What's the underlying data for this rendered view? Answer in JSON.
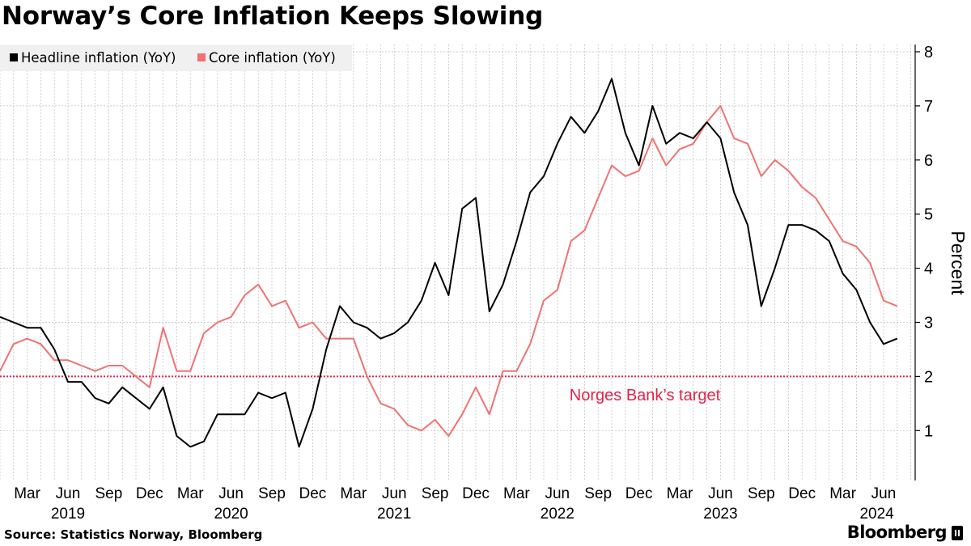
{
  "title": "Norway’s Core Inflation Keeps Slowing",
  "source": "Source: Statistics Norway, Bloomberg",
  "brand": "Bloomberg",
  "colors": {
    "headline": "#000000",
    "core": "#f07272",
    "target": "#e3224a",
    "grid": "#bdbdbd"
  },
  "chart_data": {
    "type": "line",
    "title": "Norway’s Core Inflation Keeps Slowing",
    "ylabel": "Percent",
    "ylim": [
      0,
      8
    ],
    "yticks": [
      1,
      2,
      3,
      4,
      5,
      6,
      7,
      8
    ],
    "x_start": "2019-01",
    "x_end": "2024-07",
    "x_ticks": [
      {
        "index": 2,
        "label": "Mar"
      },
      {
        "index": 5,
        "label": "Jun"
      },
      {
        "index": 8,
        "label": "Sep"
      },
      {
        "index": 11,
        "label": "Dec"
      },
      {
        "index": 14,
        "label": "Mar"
      },
      {
        "index": 17,
        "label": "Jun"
      },
      {
        "index": 20,
        "label": "Sep"
      },
      {
        "index": 23,
        "label": "Dec"
      },
      {
        "index": 26,
        "label": "Mar"
      },
      {
        "index": 29,
        "label": "Jun"
      },
      {
        "index": 32,
        "label": "Sep"
      },
      {
        "index": 35,
        "label": "Dec"
      },
      {
        "index": 38,
        "label": "Mar"
      },
      {
        "index": 41,
        "label": "Jun"
      },
      {
        "index": 44,
        "label": "Sep"
      },
      {
        "index": 47,
        "label": "Dec"
      },
      {
        "index": 50,
        "label": "Mar"
      },
      {
        "index": 53,
        "label": "Jun"
      },
      {
        "index": 56,
        "label": "Sep"
      },
      {
        "index": 59,
        "label": "Dec"
      },
      {
        "index": 62,
        "label": "Mar"
      },
      {
        "index": 65,
        "label": "Jun"
      }
    ],
    "years": [
      {
        "index": 5,
        "label": "2019"
      },
      {
        "index": 17,
        "label": "2020"
      },
      {
        "index": 29,
        "label": "2021"
      },
      {
        "index": 41,
        "label": "2022"
      },
      {
        "index": 53,
        "label": "2023"
      },
      {
        "index": 64.5,
        "label": "2024"
      }
    ],
    "series": [
      {
        "name": "Headline inflation (YoY)",
        "color": "#000000",
        "values": [
          3.1,
          3.0,
          2.9,
          2.9,
          2.5,
          1.9,
          1.9,
          1.6,
          1.5,
          1.8,
          1.6,
          1.4,
          1.8,
          0.9,
          0.7,
          0.8,
          1.3,
          1.3,
          1.3,
          1.7,
          1.6,
          1.7,
          0.7,
          1.4,
          2.5,
          3.3,
          3.0,
          2.9,
          2.7,
          2.8,
          3.0,
          3.4,
          4.1,
          3.5,
          5.1,
          5.3,
          3.2,
          3.7,
          4.5,
          5.4,
          5.7,
          6.3,
          6.8,
          6.5,
          6.9,
          7.5,
          6.5,
          5.9,
          7.0,
          6.3,
          6.5,
          6.4,
          6.7,
          6.4,
          5.4,
          4.8,
          3.3,
          4.0,
          4.8,
          4.8,
          4.7,
          4.5,
          3.9,
          3.6,
          3.0,
          2.6,
          2.7
        ]
      },
      {
        "name": "Core inflation (YoY)",
        "color": "#f07272",
        "values": [
          2.1,
          2.6,
          2.7,
          2.6,
          2.3,
          2.3,
          2.2,
          2.1,
          2.2,
          2.2,
          2.0,
          1.8,
          2.9,
          2.1,
          2.1,
          2.8,
          3.0,
          3.1,
          3.5,
          3.7,
          3.3,
          3.4,
          2.9,
          3.0,
          2.7,
          2.7,
          2.7,
          2.0,
          1.5,
          1.4,
          1.1,
          1.0,
          1.2,
          0.9,
          1.3,
          1.8,
          1.3,
          2.1,
          2.1,
          2.6,
          3.4,
          3.6,
          4.5,
          4.7,
          5.3,
          5.9,
          5.7,
          5.8,
          6.4,
          5.9,
          6.2,
          6.3,
          6.7,
          7.0,
          6.4,
          6.3,
          5.7,
          6.0,
          5.8,
          5.5,
          5.3,
          4.9,
          4.5,
          4.4,
          4.1,
          3.4,
          3.3
        ]
      }
    ],
    "reference_line": {
      "value": 2,
      "label": "Norges Bank’s target"
    }
  }
}
